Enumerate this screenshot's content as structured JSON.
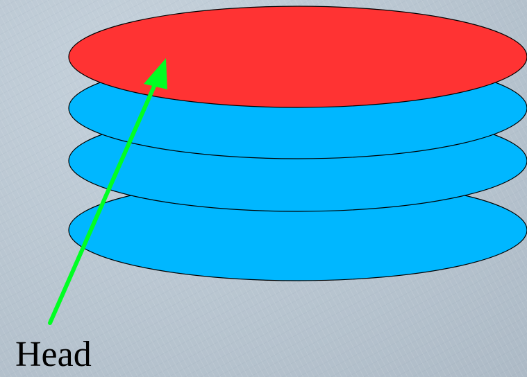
{
  "diagram": {
    "label": "Head",
    "colors": {
      "head_platter": "#ff3333",
      "platters": "#00b7ff",
      "outline": "#000000",
      "arrow": "#00ff22"
    }
  }
}
